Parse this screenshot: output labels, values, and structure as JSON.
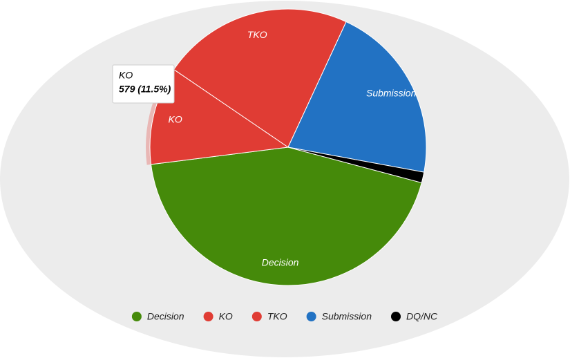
{
  "chart_data": {
    "type": "pie",
    "categories": [
      "Decision",
      "KO",
      "TKO",
      "Submission",
      "DQ/NC"
    ],
    "values": [
      2210,
      579,
      1128,
      1057,
      63
    ],
    "colors": [
      "#458a0a",
      "#e03c34",
      "#e03c34",
      "#2272c3",
      "#000000"
    ],
    "tooltip": {
      "category": "KO",
      "text": "579 (11.5%)"
    },
    "legend": "bottom"
  }
}
